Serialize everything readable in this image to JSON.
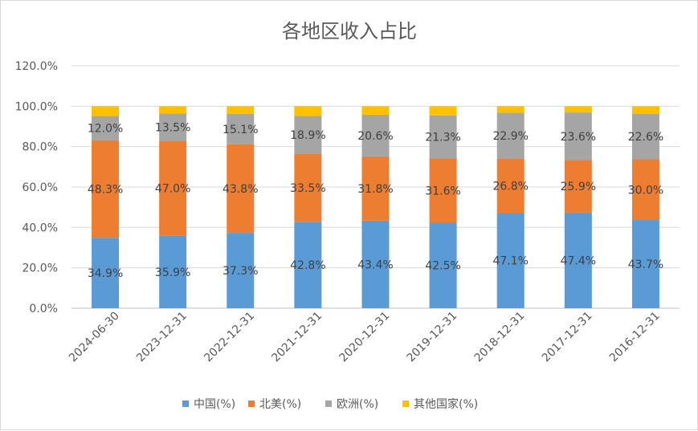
{
  "chart_data": {
    "type": "bar",
    "stacked": true,
    "title": "各地区收入占比",
    "categories": [
      "2024-06-30",
      "2023-12-31",
      "2022-12-31",
      "2021-12-31",
      "2020-12-31",
      "2019-12-31",
      "2018-12-31",
      "2017-12-31",
      "2016-12-31"
    ],
    "series": [
      {
        "name": "中国(%)",
        "color": "#5b9bd5",
        "values": [
          34.9,
          35.9,
          37.3,
          42.8,
          43.4,
          42.5,
          47.1,
          47.4,
          43.7
        ],
        "labels": [
          "34.9%",
          "35.9%",
          "37.3%",
          "42.8%",
          "43.4%",
          "42.5%",
          "47.1%",
          "47.4%",
          "43.7%"
        ]
      },
      {
        "name": "北美(%)",
        "color": "#ed7d31",
        "values": [
          48.3,
          47.0,
          43.8,
          33.5,
          31.8,
          31.6,
          26.8,
          25.9,
          30.0
        ],
        "labels": [
          "48.3%",
          "47.0%",
          "43.8%",
          "33.5%",
          "31.8%",
          "31.6%",
          "26.8%",
          "25.9%",
          "30.0%"
        ]
      },
      {
        "name": "欧洲(%)",
        "color": "#a5a5a5",
        "values": [
          12.0,
          13.5,
          15.1,
          18.9,
          20.6,
          21.3,
          22.9,
          23.6,
          22.6
        ],
        "labels": [
          "12.0%",
          "13.5%",
          "15.1%",
          "18.9%",
          "20.6%",
          "21.3%",
          "22.9%",
          "23.6%",
          "22.6%"
        ]
      },
      {
        "name": "其他国家(%)",
        "color": "#ffc000",
        "values": [
          4.8,
          3.6,
          3.8,
          4.8,
          4.2,
          4.6,
          3.2,
          3.1,
          3.7
        ]
      }
    ],
    "y_ticks": [
      "0.0%",
      "20.0%",
      "40.0%",
      "60.0%",
      "80.0%",
      "100.0%",
      "120.0%"
    ],
    "ylim": [
      0,
      120
    ],
    "grid": true,
    "legend_position": "bottom"
  }
}
